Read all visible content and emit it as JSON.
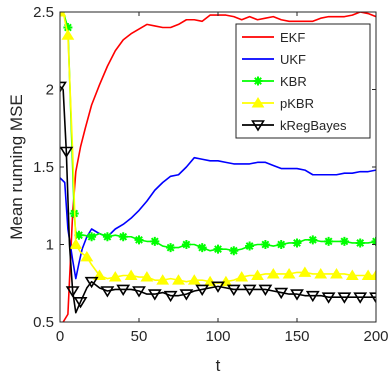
{
  "chart_data": {
    "type": "line",
    "title": "",
    "xlabel": "t",
    "ylabel": "Mean running MSE",
    "xlim": [
      0,
      200
    ],
    "ylim": [
      0.5,
      2.5
    ],
    "xticks": [
      0,
      50,
      100,
      150,
      200
    ],
    "yticks": [
      0.5,
      1,
      1.5,
      2,
      2.5
    ],
    "xtick_labels": [
      "0",
      "50",
      "100",
      "150",
      "200"
    ],
    "ytick_labels": [
      "0.5",
      "1",
      "1.5",
      "2",
      "2.5"
    ],
    "grid": false,
    "box": true,
    "legend_position": "top-right",
    "series": [
      {
        "name": "EKF",
        "color": "#ff0000",
        "marker": "none",
        "x": [
          2,
          5,
          8,
          10,
          13,
          16,
          20,
          25,
          30,
          35,
          40,
          45,
          50,
          55,
          60,
          65,
          70,
          75,
          80,
          85,
          90,
          95,
          100,
          105,
          110,
          115,
          120,
          125,
          130,
          135,
          140,
          145,
          150,
          155,
          160,
          165,
          170,
          175,
          180,
          185,
          190,
          195,
          200
        ],
        "y": [
          0.5,
          0.55,
          1.2,
          1.47,
          1.63,
          1.75,
          1.9,
          2.03,
          2.15,
          2.25,
          2.32,
          2.36,
          2.39,
          2.42,
          2.41,
          2.4,
          2.4,
          2.42,
          2.45,
          2.45,
          2.44,
          2.48,
          2.48,
          2.48,
          2.47,
          2.45,
          2.47,
          2.45,
          2.46,
          2.47,
          2.45,
          2.44,
          2.44,
          2.44,
          2.44,
          2.46,
          2.47,
          2.47,
          2.47,
          2.48,
          2.5,
          2.49,
          2.47
        ]
      },
      {
        "name": "UKF",
        "color": "#0000ff",
        "marker": "none",
        "x": [
          0,
          3,
          5,
          8,
          10,
          12,
          14,
          17,
          20,
          25,
          30,
          35,
          40,
          45,
          50,
          55,
          60,
          65,
          70,
          75,
          80,
          85,
          90,
          95,
          100,
          105,
          110,
          115,
          120,
          125,
          130,
          135,
          140,
          145,
          150,
          155,
          160,
          165,
          170,
          175,
          180,
          185,
          190,
          195,
          200
        ],
        "y": [
          1.43,
          1.4,
          1.1,
          0.9,
          0.78,
          0.88,
          0.97,
          1.05,
          1.1,
          1.07,
          1.05,
          1.1,
          1.13,
          1.17,
          1.22,
          1.28,
          1.35,
          1.4,
          1.44,
          1.45,
          1.5,
          1.56,
          1.55,
          1.54,
          1.54,
          1.53,
          1.52,
          1.52,
          1.52,
          1.53,
          1.53,
          1.51,
          1.49,
          1.49,
          1.49,
          1.48,
          1.45,
          1.45,
          1.45,
          1.45,
          1.46,
          1.46,
          1.47,
          1.47,
          1.48
        ]
      },
      {
        "name": "KBR",
        "color": "#00ff00",
        "marker": "star",
        "x": [
          0,
          2,
          5,
          7,
          9,
          10,
          12,
          15,
          20,
          25,
          30,
          35,
          40,
          45,
          50,
          55,
          60,
          65,
          70,
          75,
          80,
          85,
          90,
          95,
          100,
          105,
          110,
          115,
          120,
          125,
          130,
          135,
          140,
          145,
          150,
          155,
          160,
          165,
          170,
          175,
          180,
          185,
          190,
          195,
          200
        ],
        "y": [
          2.5,
          2.5,
          2.4,
          1.8,
          1.2,
          1.07,
          1.06,
          1.06,
          1.05,
          1.07,
          1.05,
          1.06,
          1.05,
          1.05,
          1.03,
          1.02,
          1.02,
          0.99,
          0.98,
          0.98,
          1.0,
          1.0,
          0.98,
          0.96,
          0.97,
          0.97,
          0.96,
          0.97,
          0.99,
          1.0,
          1.0,
          0.99,
          1.0,
          1.01,
          1.01,
          1.03,
          1.03,
          1.02,
          1.02,
          1.02,
          1.02,
          1.01,
          1.01,
          1.01,
          1.02
        ]
      },
      {
        "name": "pKBR",
        "color": "#ffff00",
        "marker": "triangle-up",
        "x": [
          0,
          2,
          5,
          8,
          10,
          13,
          17,
          20,
          25,
          30,
          35,
          40,
          45,
          50,
          55,
          60,
          65,
          70,
          75,
          80,
          85,
          90,
          95,
          100,
          105,
          110,
          115,
          120,
          125,
          130,
          135,
          140,
          145,
          150,
          155,
          160,
          165,
          170,
          175,
          180,
          185,
          190,
          195,
          200
        ],
        "y": [
          2.5,
          2.5,
          2.35,
          1.6,
          1.0,
          0.95,
          0.92,
          0.87,
          0.8,
          0.78,
          0.79,
          0.8,
          0.8,
          0.79,
          0.79,
          0.77,
          0.77,
          0.78,
          0.77,
          0.76,
          0.77,
          0.77,
          0.76,
          0.75,
          0.76,
          0.77,
          0.79,
          0.8,
          0.8,
          0.81,
          0.81,
          0.81,
          0.81,
          0.82,
          0.82,
          0.81,
          0.81,
          0.81,
          0.81,
          0.81,
          0.8,
          0.8,
          0.8,
          0.8
        ]
      },
      {
        "name": "kRegBayes",
        "color": "#000000",
        "marker": "triangle-down",
        "x": [
          0,
          2,
          4,
          6,
          8,
          10,
          13,
          17,
          20,
          25,
          30,
          35,
          40,
          45,
          50,
          55,
          60,
          65,
          70,
          75,
          80,
          85,
          90,
          95,
          100,
          105,
          110,
          115,
          120,
          125,
          130,
          135,
          140,
          145,
          150,
          155,
          160,
          165,
          170,
          175,
          180,
          185,
          190,
          195,
          200
        ],
        "y": [
          2.02,
          2.0,
          1.6,
          1.0,
          0.7,
          0.56,
          0.63,
          0.72,
          0.76,
          0.72,
          0.7,
          0.71,
          0.71,
          0.71,
          0.7,
          0.68,
          0.68,
          0.69,
          0.67,
          0.67,
          0.68,
          0.7,
          0.71,
          0.72,
          0.73,
          0.72,
          0.71,
          0.71,
          0.71,
          0.71,
          0.71,
          0.7,
          0.69,
          0.68,
          0.68,
          0.67,
          0.67,
          0.67,
          0.66,
          0.66,
          0.66,
          0.66,
          0.66,
          0.66,
          0.66
        ]
      }
    ]
  }
}
